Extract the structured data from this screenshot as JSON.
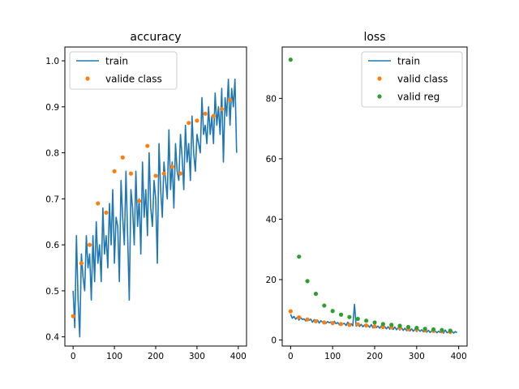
{
  "chart_data": [
    {
      "type": "line",
      "title": "accuracy",
      "xlabel": "",
      "ylabel": "",
      "xlim": [
        -20,
        420
      ],
      "ylim": [
        0.38,
        1.03
      ],
      "xticks": [
        0,
        100,
        200,
        300,
        400
      ],
      "yticks": [
        0.4,
        0.5,
        0.6,
        0.7,
        0.8,
        0.9,
        1.0
      ],
      "ytick_labels": [
        "0.4",
        "0.5",
        "0.6",
        "0.7",
        "0.8",
        "0.9",
        "1.0"
      ],
      "legend": {
        "placement": "top-left"
      },
      "series": [
        {
          "name": "train",
          "kind": "line",
          "color": "#1f77b4",
          "x_step": 4,
          "values": [
            0.5,
            0.42,
            0.62,
            0.48,
            0.4,
            0.58,
            0.53,
            0.5,
            0.62,
            0.55,
            0.58,
            0.48,
            0.62,
            0.52,
            0.65,
            0.56,
            0.6,
            0.52,
            0.68,
            0.58,
            0.62,
            0.55,
            0.69,
            0.6,
            0.72,
            0.56,
            0.66,
            0.64,
            0.52,
            0.74,
            0.66,
            0.6,
            0.76,
            0.62,
            0.48,
            0.72,
            0.68,
            0.6,
            0.76,
            0.64,
            0.7,
            0.58,
            0.78,
            0.66,
            0.72,
            0.62,
            0.8,
            0.68,
            0.64,
            0.74,
            0.7,
            0.56,
            0.82,
            0.72,
            0.66,
            0.78,
            0.74,
            0.7,
            0.85,
            0.72,
            0.78,
            0.68,
            0.82,
            0.76,
            0.74,
            0.84,
            0.79,
            0.72,
            0.86,
            0.78,
            0.82,
            0.74,
            0.88,
            0.8,
            0.76,
            0.84,
            0.82,
            0.8,
            0.92,
            0.84,
            0.86,
            0.82,
            0.9,
            0.84,
            0.88,
            0.82,
            0.93,
            0.86,
            0.9,
            0.84,
            0.94,
            0.78,
            0.92,
            0.88,
            0.96,
            0.86,
            0.94,
            0.9,
            0.96,
            0.8
          ]
        },
        {
          "name": "valide class",
          "kind": "scatter",
          "color": "#ff7f0e",
          "points": [
            [
              0,
              0.445
            ],
            [
              20,
              0.56
            ],
            [
              40,
              0.6
            ],
            [
              60,
              0.69
            ],
            [
              80,
              0.67
            ],
            [
              100,
              0.76
            ],
            [
              120,
              0.79
            ],
            [
              140,
              0.755
            ],
            [
              160,
              0.695
            ],
            [
              180,
              0.815
            ],
            [
              200,
              0.75
            ],
            [
              220,
              0.755
            ],
            [
              240,
              0.77
            ],
            [
              260,
              0.755
            ],
            [
              280,
              0.865
            ],
            [
              300,
              0.87
            ],
            [
              320,
              0.885
            ],
            [
              340,
              0.88
            ],
            [
              360,
              0.895
            ],
            [
              380,
              0.915
            ]
          ]
        }
      ]
    },
    {
      "type": "line",
      "title": "loss",
      "xlabel": "",
      "ylabel": "",
      "xlim": [
        -20,
        420
      ],
      "ylim": [
        -2,
        97
      ],
      "xticks": [
        0,
        100,
        200,
        300,
        400
      ],
      "yticks": [
        0,
        20,
        40,
        60,
        80
      ],
      "ytick_labels": [
        "0",
        "20",
        "40",
        "60",
        "80"
      ],
      "legend": {
        "placement": "top-right"
      },
      "series": [
        {
          "name": "train",
          "kind": "line",
          "color": "#1f77b4",
          "x_step": 4,
          "values": [
            8.5,
            7.2,
            7.8,
            6.9,
            7.5,
            6.6,
            7.4,
            6.8,
            7.0,
            6.3,
            7.1,
            6.5,
            6.9,
            5.9,
            6.7,
            6.2,
            6.6,
            5.6,
            6.4,
            5.9,
            6.3,
            5.5,
            6.1,
            5.7,
            6.0,
            5.2,
            6.2,
            5.4,
            5.8,
            5.0,
            5.7,
            5.3,
            5.5,
            4.8,
            5.9,
            5.0,
            5.4,
            4.7,
            11.8,
            4.6,
            5.6,
            4.5,
            5.2,
            4.4,
            5.0,
            4.3,
            4.9,
            4.2,
            5.1,
            4.0,
            4.8,
            4.1,
            4.6,
            3.9,
            4.7,
            3.8,
            4.5,
            3.7,
            4.4,
            3.6,
            4.2,
            3.5,
            4.3,
            3.4,
            4.1,
            3.3,
            4.0,
            3.2,
            3.9,
            3.1,
            3.8,
            3.0,
            3.7,
            2.9,
            3.6,
            2.8,
            3.5,
            2.9,
            3.4,
            2.7,
            3.3,
            2.6,
            3.2,
            2.5,
            3.1,
            2.6,
            3.0,
            2.4,
            2.9,
            2.5,
            2.8,
            2.3,
            3.3,
            2.4,
            2.7,
            2.2,
            2.9,
            2.3,
            2.8,
            2.4
          ]
        },
        {
          "name": "valid class",
          "kind": "scatter",
          "color": "#ff7f0e",
          "points": [
            [
              0,
              9.5
            ],
            [
              20,
              7.5
            ],
            [
              40,
              6.8
            ],
            [
              60,
              6.2
            ],
            [
              80,
              5.8
            ],
            [
              100,
              5.6
            ],
            [
              120,
              5.3
            ],
            [
              140,
              5.0
            ],
            [
              160,
              5.2
            ],
            [
              180,
              4.8
            ],
            [
              200,
              4.5
            ],
            [
              220,
              4.3
            ],
            [
              240,
              4.2
            ],
            [
              260,
              4.0
            ],
            [
              280,
              3.6
            ],
            [
              300,
              3.5
            ],
            [
              320,
              3.2
            ],
            [
              340,
              3.0
            ],
            [
              360,
              2.9
            ],
            [
              380,
              2.7
            ]
          ]
        },
        {
          "name": "valid reg",
          "kind": "scatter",
          "color": "#2ca02c",
          "points": [
            [
              0,
              92.8
            ],
            [
              20,
              27.6
            ],
            [
              40,
              19.5
            ],
            [
              60,
              15.3
            ],
            [
              80,
              11.4
            ],
            [
              100,
              9.6
            ],
            [
              120,
              8.4
            ],
            [
              140,
              7.6
            ],
            [
              160,
              7.0
            ],
            [
              180,
              6.4
            ],
            [
              200,
              5.8
            ],
            [
              220,
              5.3
            ],
            [
              240,
              5.0
            ],
            [
              260,
              4.7
            ],
            [
              280,
              4.3
            ],
            [
              300,
              4.0
            ],
            [
              320,
              3.7
            ],
            [
              340,
              3.5
            ],
            [
              360,
              3.3
            ],
            [
              380,
              3.1
            ]
          ]
        }
      ]
    }
  ]
}
